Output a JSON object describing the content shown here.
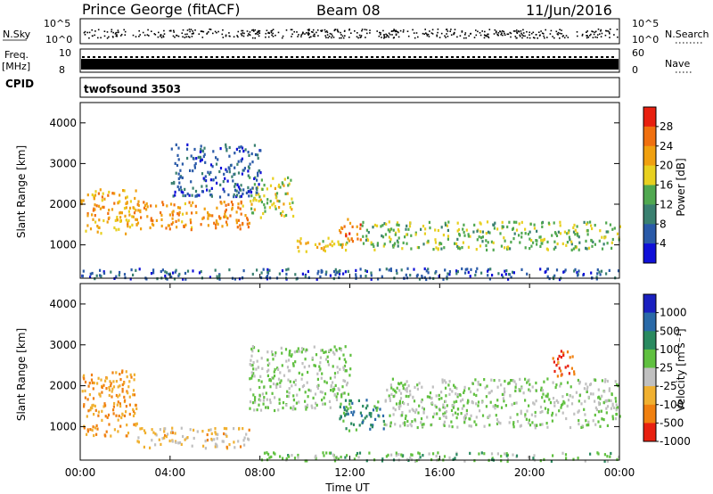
{
  "header": {
    "station": "Prince George (fitACF)",
    "beam": "Beam 08",
    "date": "11/Jun/2016"
  },
  "strip_labels": {
    "nsky": "N.Sky",
    "freq": "Freq.",
    "freq_unit": "[MHz]",
    "cpid": "CPID",
    "nsearch": "N.Search",
    "nave": "Nave",
    "cpid_value": "twofsound 3503",
    "nsky_ticks": [
      "10^5",
      "10^0"
    ],
    "freq_ticks": [
      "10",
      "8"
    ],
    "nsearch_ticks": [
      "10^5",
      "10^0"
    ],
    "nave_ticks": [
      "60",
      "0"
    ]
  },
  "x_axis": {
    "label": "Time UT",
    "ticks": [
      "00:00",
      "04:00",
      "08:00",
      "12:00",
      "16:00",
      "20:00",
      "00:00"
    ],
    "hours": [
      0,
      4,
      8,
      12,
      16,
      20,
      24
    ]
  },
  "power_panel": {
    "ylabel": "Slant Range [km]",
    "yticks": [
      1000,
      2000,
      3000,
      4000
    ],
    "colorbar_label": "Power [dB]",
    "colorbar_ticks": [
      "4",
      "8",
      "12",
      "16",
      "20",
      "24",
      "28"
    ],
    "colors": [
      "#1010d8",
      "#2a5aa8",
      "#3a8070",
      "#50a850",
      "#e8d020",
      "#f0a010",
      "#f07010",
      "#e82010"
    ]
  },
  "velocity_panel": {
    "ylabel": "Slant Range [km]",
    "yticks": [
      1000,
      2000,
      3000,
      4000
    ],
    "colorbar_label": "Velocity [m s⁻¹]",
    "colorbar_ticks": [
      "1000",
      "500",
      "100",
      "25",
      "-25",
      "-100",
      "-500",
      "-1000"
    ],
    "colors": [
      "#1a20c0",
      "#2a6aa8",
      "#2a8a60",
      "#60c040",
      "#c0c0c0",
      "#f0b030",
      "#f08010",
      "#e82010"
    ]
  },
  "chart_data": [
    {
      "type": "heatmap",
      "title": "Power",
      "xlabel": "Time UT",
      "ylabel": "Slant Range [km]",
      "xlim": [
        0,
        24
      ],
      "ylim": [
        180,
        4500
      ],
      "colorbar": {
        "label": "Power [dB]",
        "range": [
          0,
          30
        ]
      },
      "regions": [
        {
          "t": [
            0.0,
            2.5
          ],
          "range_km": [
            1300,
            2400
          ],
          "value": 20
        },
        {
          "t": [
            2.5,
            7.5
          ],
          "range_km": [
            1400,
            2100
          ],
          "value": 22
        },
        {
          "t": [
            7.5,
            9.5
          ],
          "range_km": [
            1700,
            2700
          ],
          "value": 16
        },
        {
          "t": [
            9.5,
            12.0
          ],
          "range_km": [
            850,
            1200
          ],
          "value": 18
        },
        {
          "t": [
            11.5,
            12.5
          ],
          "range_km": [
            1100,
            1700
          ],
          "value": 24
        },
        {
          "t": [
            12.5,
            24.0
          ],
          "range_km": [
            900,
            1600
          ],
          "value": 14
        },
        {
          "t": [
            4.0,
            8.0
          ],
          "range_km": [
            2200,
            3500
          ],
          "value": 6
        },
        {
          "t": [
            0.0,
            24.0
          ],
          "range_km": [
            180,
            450
          ],
          "value": 6
        }
      ]
    },
    {
      "type": "heatmap",
      "title": "Velocity",
      "xlabel": "Time UT",
      "ylabel": "Slant Range [km]",
      "xlim": [
        0,
        24
      ],
      "ylim": [
        180,
        4500
      ],
      "colorbar": {
        "label": "Velocity [m s⁻¹]",
        "range": [
          -1000,
          1000
        ]
      },
      "regions": [
        {
          "t": [
            0.0,
            2.5
          ],
          "range_km": [
            800,
            2400
          ],
          "value": -500
        },
        {
          "t": [
            2.5,
            7.5
          ],
          "range_km": [
            500,
            1000
          ],
          "value": -300
        },
        {
          "t": [
            7.5,
            12.0
          ],
          "range_km": [
            1400,
            3000
          ],
          "value": 0
        },
        {
          "t": [
            11.5,
            13.5
          ],
          "range_km": [
            900,
            1700
          ],
          "value": 400
        },
        {
          "t": [
            13.5,
            24.0
          ],
          "range_km": [
            1000,
            2200
          ],
          "value": 0
        },
        {
          "t": [
            21.0,
            22.0
          ],
          "range_km": [
            2200,
            2900
          ],
          "value": -700
        },
        {
          "t": [
            8.0,
            24.0
          ],
          "range_km": [
            180,
            400
          ],
          "value": 100
        }
      ]
    }
  ]
}
